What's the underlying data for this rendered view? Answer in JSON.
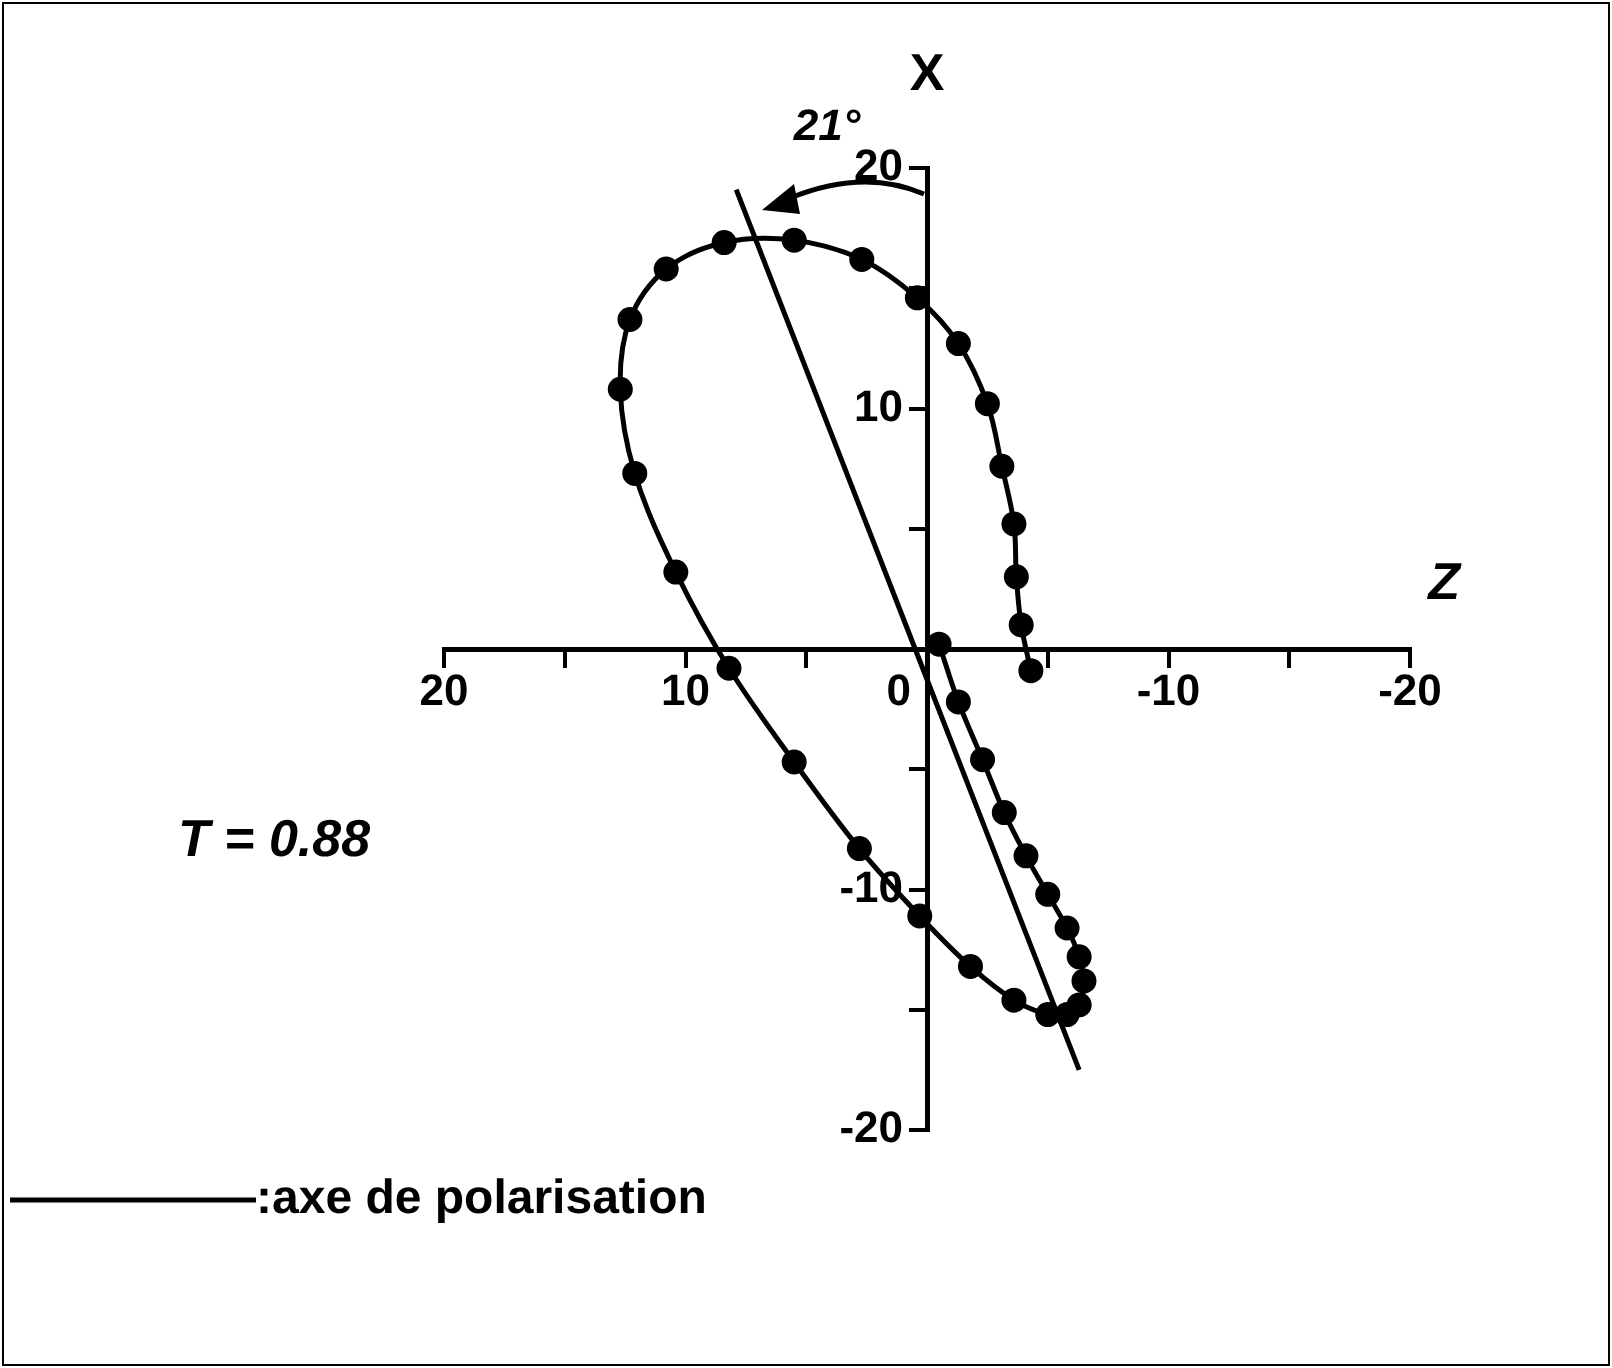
{
  "chart_data": {
    "type": "line",
    "xlabel": "Z",
    "ylabel": "X",
    "xlim": [
      20,
      -20
    ],
    "ylim": [
      -20,
      20
    ],
    "xticks": [
      20,
      {
        "value": 15,
        "label": null
      },
      10,
      {
        "value": 5,
        "label": null
      },
      0,
      {
        "value": -5,
        "label": null
      },
      -10,
      {
        "value": -15,
        "label": null
      },
      -20
    ],
    "yticks": [
      -20,
      {
        "value": -15,
        "label": null
      },
      -10,
      {
        "value": -5,
        "label": null
      },
      {
        "value": 0,
        "label": null
      },
      {
        "value": 5,
        "label": null
      },
      10,
      {
        "value": 15,
        "label": null
      },
      20
    ],
    "grid": false,
    "marker": "circle",
    "line_style": "solid",
    "legend": "bottom left",
    "annotations": [
      "21°",
      "T = 0.88"
    ],
    "series": [
      {
        "color": "#000000",
        "x": [
          -0.5,
          -1.3,
          -2.3,
          -3.2,
          -4.1,
          -5.0,
          -5.8,
          -6.3,
          -6.5,
          -6.3,
          -5.8,
          -5.0,
          -3.6,
          -1.8,
          0.3,
          2.8,
          5.5,
          8.2,
          10.4,
          12.1,
          12.7,
          12.3,
          10.8,
          8.4,
          5.5,
          2.7,
          0.4,
          -1.3,
          -2.5,
          -3.1,
          -3.6,
          -3.7,
          -3.9,
          -4.3
        ],
        "values": [
          0.2,
          -2.2,
          -4.6,
          -6.8,
          -8.6,
          -10.2,
          -11.6,
          -12.8,
          -13.8,
          -14.8,
          -15.2,
          -15.2,
          -14.6,
          -13.2,
          -11.1,
          -8.3,
          -4.7,
          -0.8,
          3.2,
          7.3,
          10.8,
          13.7,
          15.8,
          16.9,
          17.0,
          16.2,
          14.6,
          12.7,
          10.2,
          7.6,
          5.2,
          3.0,
          1.0,
          -0.9
        ]
      },
      {
        "name": ":axe de polarisation",
        "color": "#000000",
        "marker": "none",
        "x": [
          7.9,
          -6.3
        ],
        "values": [
          19.1,
          -17.5
        ]
      }
    ]
  }
}
